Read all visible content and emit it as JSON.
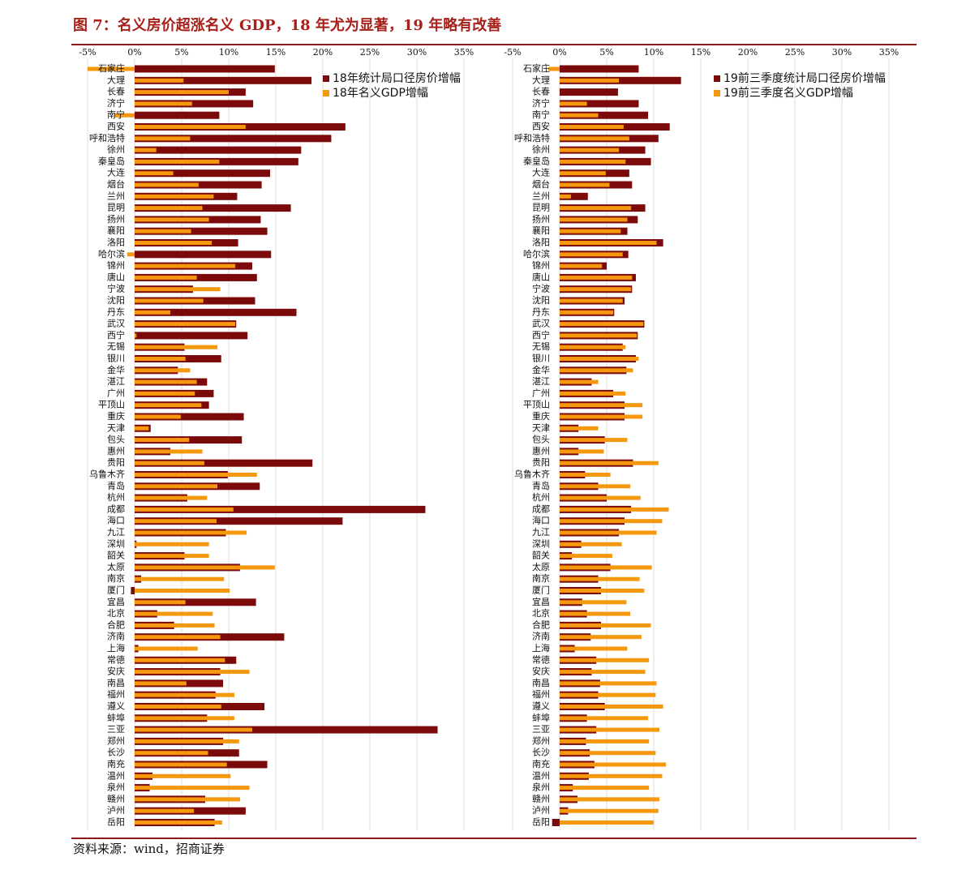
{
  "title": "图 7：名义房价超涨名义 GDP，18 年尤为显著，19 年略有改善",
  "source": "资料来源：wind，招商证券",
  "chart_data": [
    {
      "type": "hbar",
      "categories": [
        "石家庄",
        "大理",
        "长春",
        "济宁",
        "南宁",
        "西安",
        "呼和浩特",
        "徐州",
        "秦皇岛",
        "大连",
        "烟台",
        "兰州",
        "昆明",
        "扬州",
        "襄阳",
        "洛阳",
        "哈尔滨",
        "锦州",
        "唐山",
        "宁波",
        "沈阳",
        "丹东",
        "武汉",
        "西宁",
        "无锡",
        "银川",
        "金华",
        "湛江",
        "广州",
        "平顶山",
        "重庆",
        "天津",
        "包头",
        "惠州",
        "贵阳",
        "乌鲁木齐",
        "青岛",
        "杭州",
        "成都",
        "海口",
        "九江",
        "深圳",
        "韶关",
        "太原",
        "南京",
        "厦门",
        "宜昌",
        "北京",
        "合肥",
        "济南",
        "上海",
        "常德",
        "安庆",
        "南昌",
        "福州",
        "遵义",
        "蚌埠",
        "三亚",
        "郑州",
        "长沙",
        "南充",
        "温州",
        "泉州",
        "赣州",
        "泸州",
        "岳阳"
      ],
      "series": [
        {
          "name": "18年统计局口径房价增幅",
          "color": "#7b0a0a",
          "values": [
            14.9,
            18.8,
            11.8,
            12.6,
            9.0,
            22.4,
            20.9,
            17.7,
            17.4,
            14.4,
            13.5,
            10.9,
            16.6,
            13.4,
            14.1,
            11.0,
            14.5,
            12.5,
            13.0,
            6.2,
            12.8,
            17.2,
            10.8,
            12.0,
            5.3,
            9.2,
            4.6,
            7.7,
            8.4,
            7.9,
            11.6,
            1.7,
            11.4,
            3.8,
            18.9,
            9.9,
            13.3,
            5.6,
            30.9,
            22.1,
            9.7,
            0.2,
            5.3,
            11.2,
            0.7,
            -0.4,
            12.9,
            2.4,
            4.2,
            15.9,
            0.4,
            10.8,
            9.1,
            9.4,
            8.6,
            13.8,
            7.7,
            32.2,
            9.4,
            11.1,
            14.1,
            1.9,
            1.6,
            7.5,
            11.8,
            8.5
          ]
        },
        {
          "name": "18年名义GDP增幅",
          "color": "#f5980e",
          "values": [
            -5.0,
            5.2,
            10.0,
            6.1,
            -2.1,
            11.8,
            5.9,
            2.3,
            9.0,
            4.1,
            6.8,
            8.4,
            7.2,
            7.9,
            6.0,
            8.2,
            -0.8,
            10.7,
            6.6,
            9.1,
            7.3,
            3.8,
            10.7,
            0.2,
            8.8,
            5.4,
            5.9,
            6.6,
            6.4,
            7.1,
            4.9,
            1.5,
            5.8,
            7.2,
            7.4,
            13.0,
            8.8,
            7.7,
            10.5,
            8.7,
            11.9,
            7.9,
            7.9,
            14.9,
            9.5,
            10.1,
            5.4,
            8.3,
            8.5,
            9.1,
            6.7,
            9.6,
            12.2,
            5.5,
            10.6,
            9.2,
            10.6,
            12.5,
            11.1,
            7.8,
            9.8,
            10.2,
            12.2,
            11.2,
            6.3,
            9.3
          ]
        }
      ],
      "xlim": [
        -5,
        35
      ],
      "xticks": [
        {
          "value": -5,
          "label": "-5%"
        },
        {
          "value": 0,
          "label": "0%"
        },
        {
          "value": 5,
          "label": "5%"
        },
        {
          "value": 10,
          "label": "10%"
        },
        {
          "value": 15,
          "label": "15%"
        },
        {
          "value": 20,
          "label": "20%"
        },
        {
          "value": 25,
          "label": "25%"
        },
        {
          "value": 30,
          "label": "30%"
        },
        {
          "value": 35,
          "label": "35%"
        }
      ],
      "grid": true
    },
    {
      "type": "hbar",
      "categories": [
        "石家庄",
        "大理",
        "长春",
        "济宁",
        "南宁",
        "西安",
        "呼和浩特",
        "徐州",
        "秦皇岛",
        "大连",
        "烟台",
        "兰州",
        "昆明",
        "扬州",
        "襄阳",
        "洛阳",
        "哈尔滨",
        "锦州",
        "唐山",
        "宁波",
        "沈阳",
        "丹东",
        "武汉",
        "西宁",
        "无锡",
        "银川",
        "金华",
        "湛江",
        "广州",
        "平顶山",
        "重庆",
        "天津",
        "包头",
        "惠州",
        "贵阳",
        "乌鲁木齐",
        "青岛",
        "杭州",
        "成都",
        "海口",
        "九江",
        "深圳",
        "韶关",
        "太原",
        "南京",
        "厦门",
        "宜昌",
        "北京",
        "合肥",
        "济南",
        "上海",
        "常德",
        "安庆",
        "南昌",
        "福州",
        "遵义",
        "蚌埠",
        "三亚",
        "郑州",
        "长沙",
        "南充",
        "温州",
        "泉州",
        "赣州",
        "泸州",
        "岳阳"
      ],
      "series": [
        {
          "name": "19前三季度统计局口径房价增幅",
          "color": "#7b0a0a",
          "values": [
            8.4,
            12.9,
            6.2,
            8.4,
            9.4,
            11.7,
            10.5,
            9.1,
            9.7,
            7.4,
            7.7,
            3.0,
            9.1,
            8.3,
            7.2,
            11.0,
            7.3,
            5.0,
            8.1,
            7.7,
            6.9,
            5.8,
            9.0,
            8.3,
            6.7,
            8.1,
            7.1,
            3.4,
            5.7,
            6.9,
            6.9,
            2.0,
            4.8,
            2.0,
            7.8,
            2.7,
            4.1,
            5.0,
            7.6,
            6.9,
            6.3,
            2.3,
            1.3,
            5.4,
            4.1,
            4.4,
            2.4,
            2.9,
            4.4,
            3.3,
            1.6,
            3.9,
            3.4,
            4.3,
            4.1,
            4.8,
            2.9,
            3.9,
            2.8,
            3.2,
            3.7,
            3.1,
            1.4,
            1.9,
            0.9,
            -0.8
          ]
        },
        {
          "name": "19前三季度名义GDP增幅",
          "color": "#f5980e",
          "values": [
            -1.2,
            6.3,
            0,
            2.9,
            4.1,
            6.8,
            7.4,
            6.3,
            7.0,
            4.9,
            5.3,
            1.2,
            7.6,
            7.2,
            6.5,
            10.3,
            6.7,
            4.5,
            7.7,
            7.6,
            6.7,
            5.7,
            8.9,
            8.2,
            7.0,
            8.4,
            7.8,
            4.1,
            7.0,
            8.8,
            8.8,
            4.1,
            7.2,
            4.7,
            10.5,
            5.4,
            7.5,
            8.6,
            11.6,
            10.9,
            10.3,
            6.6,
            5.6,
            9.8,
            8.5,
            9.0,
            7.1,
            7.5,
            9.7,
            8.7,
            7.2,
            9.5,
            9.1,
            10.3,
            10.2,
            11.0,
            9.4,
            10.6,
            9.5,
            10.2,
            11.3,
            10.9,
            9.5,
            10.6,
            10.5,
            10.0
          ]
        }
      ],
      "xlim": [
        -5,
        35
      ],
      "xticks": [
        {
          "value": -5,
          "label": "-5%"
        },
        {
          "value": 0,
          "label": "0%"
        },
        {
          "value": 5,
          "label": "5%"
        },
        {
          "value": 10,
          "label": "10%"
        },
        {
          "value": 15,
          "label": "15%"
        },
        {
          "value": 20,
          "label": "20%"
        },
        {
          "value": 25,
          "label": "25%"
        },
        {
          "value": 30,
          "label": "30%"
        },
        {
          "value": 35,
          "label": "35%"
        }
      ],
      "grid": true
    }
  ]
}
